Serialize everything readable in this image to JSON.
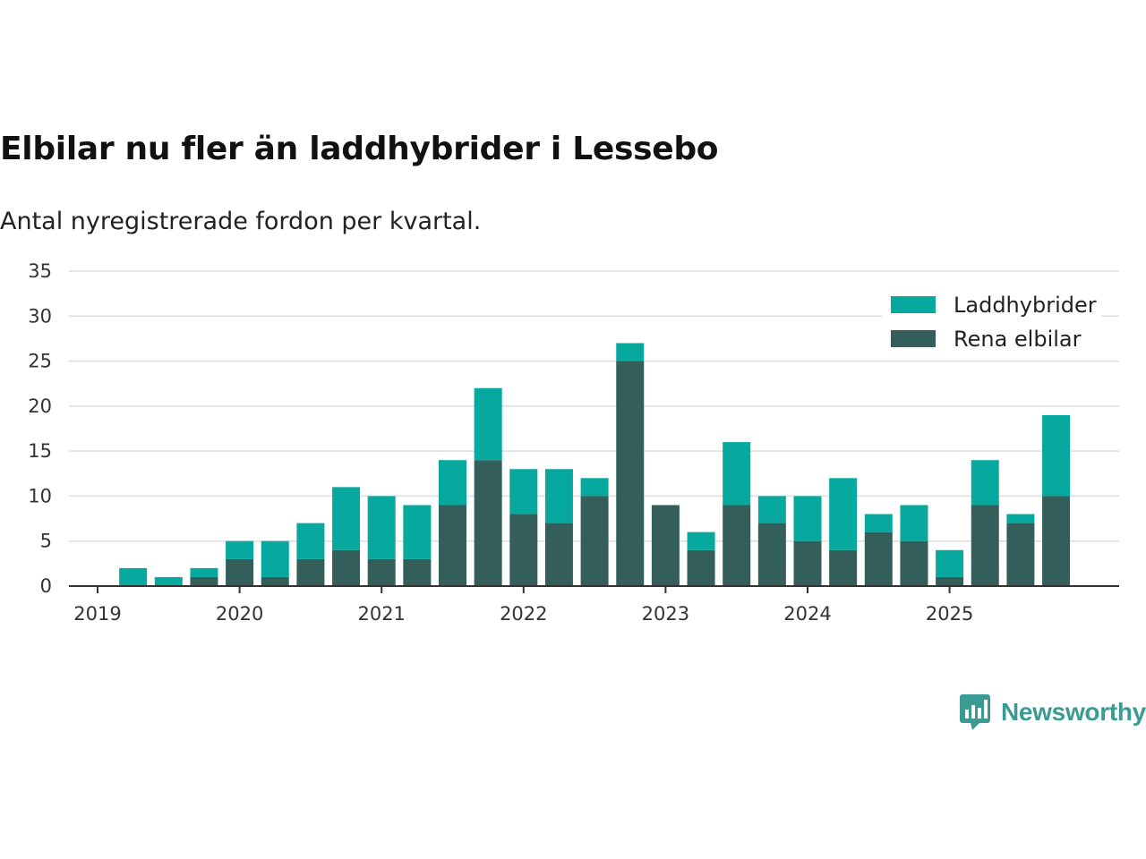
{
  "chart_data": {
    "type": "bar",
    "stacked": true,
    "title": "Elbilar nu fler än laddhybrider i Lessebo",
    "subtitle": "Antal nyregistrerade fordon per kvartal.",
    "xlabel": "",
    "ylabel": "",
    "ylim": [
      0,
      35
    ],
    "yticks": [
      "0",
      "5",
      "10",
      "15",
      "20",
      "25",
      "30",
      "35"
    ],
    "xticks": [
      "2019",
      "2020",
      "2021",
      "2022",
      "2023",
      "2024",
      "2025"
    ],
    "categories": [
      "2019 Q1",
      "2019 Q2",
      "2019 Q3",
      "2019 Q4",
      "2020 Q1",
      "2020 Q2",
      "2020 Q3",
      "2020 Q4",
      "2021 Q1",
      "2021 Q2",
      "2021 Q3",
      "2021 Q4",
      "2022 Q1",
      "2022 Q2",
      "2022 Q3",
      "2022 Q4",
      "2023 Q1",
      "2023 Q2",
      "2023 Q3",
      "2023 Q4",
      "2024 Q1",
      "2024 Q2",
      "2024 Q3",
      "2024 Q4",
      "2025 Q1",
      "2025 Q2",
      "2025 Q3",
      "2025 Q4"
    ],
    "series": [
      {
        "name": "Rena elbilar",
        "color": "#335e5a",
        "values": [
          0,
          0,
          0,
          1,
          3,
          1,
          3,
          4,
          3,
          3,
          9,
          14,
          8,
          7,
          10,
          25,
          9,
          4,
          9,
          7,
          5,
          4,
          6,
          5,
          1,
          9,
          7,
          10
        ]
      },
      {
        "name": "Laddhybrider",
        "color": "#07a89e",
        "values": [
          0,
          2,
          1,
          1,
          2,
          4,
          4,
          7,
          7,
          6,
          5,
          8,
          5,
          6,
          2,
          2,
          0,
          2,
          7,
          3,
          5,
          8,
          2,
          4,
          3,
          5,
          1,
          9
        ]
      }
    ],
    "legend": [
      "Laddhybrider",
      "Rena elbilar"
    ],
    "legend_position": "top-right",
    "grid": true
  },
  "brand": {
    "name": "Newsworthy",
    "color": "#3a9b93"
  }
}
